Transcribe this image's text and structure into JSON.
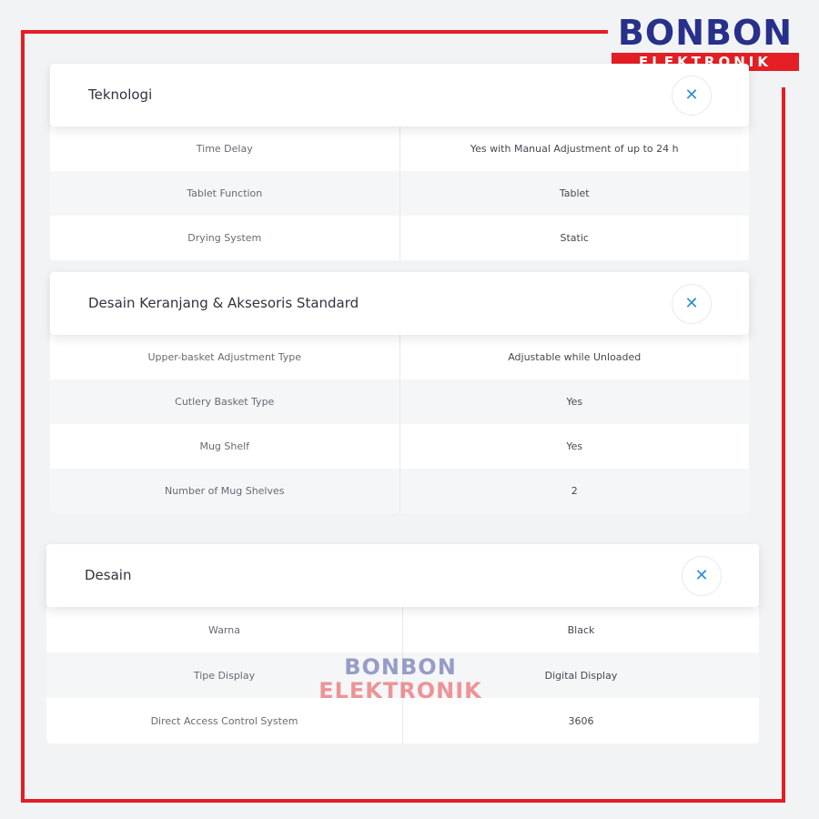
{
  "brand": {
    "line1": "BONBON",
    "line2": "ELEKTRONIK",
    "primary": "#27308a",
    "accent": "#e31e24"
  },
  "watermark": {
    "line1": "BONBON",
    "line2": "ELEKTRONIK"
  },
  "sections": [
    {
      "title": "Teknologi",
      "close_icon": "close-icon",
      "rows": [
        {
          "label": "Time Delay",
          "value": "Yes with Manual Adjustment of up to 24 h"
        },
        {
          "label": "Tablet Function",
          "value": "Tablet"
        },
        {
          "label": "Drying System",
          "value": "Static"
        }
      ]
    },
    {
      "title": "Desain Keranjang & Aksesoris Standard",
      "close_icon": "close-icon",
      "rows": [
        {
          "label": "Upper-basket Adjustment Type",
          "value": "Adjustable while Unloaded"
        },
        {
          "label": "Cutlery Basket Type",
          "value": "Yes"
        },
        {
          "label": "Mug Shelf",
          "value": "Yes"
        },
        {
          "label": "Number of Mug Shelves",
          "value": "2"
        }
      ]
    },
    {
      "title": "Desain",
      "close_icon": "close-icon",
      "rows": [
        {
          "label": "Warna",
          "value": "Black"
        },
        {
          "label": "Tipe Display",
          "value": "Digital Display"
        },
        {
          "label": "Direct Access Control System",
          "value": "3606"
        }
      ]
    }
  ]
}
